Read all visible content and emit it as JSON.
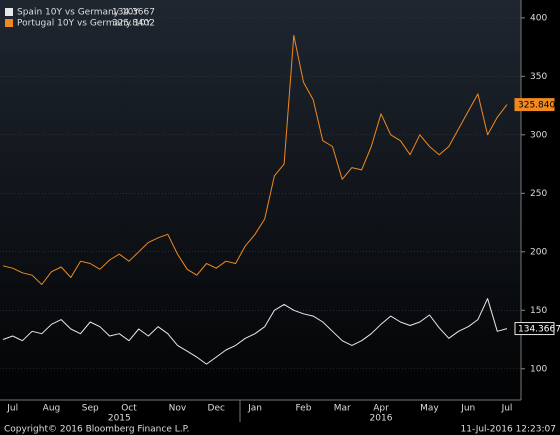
{
  "chart_data": {
    "type": "line",
    "categories": [
      null,
      "Jul",
      null,
      null,
      null,
      "Aug",
      null,
      null,
      null,
      "Sep",
      null,
      null,
      null,
      "Oct",
      null,
      null,
      null,
      null,
      "Nov",
      null,
      null,
      null,
      "Dec",
      null,
      null,
      null,
      "Jan",
      null,
      null,
      null,
      null,
      "Feb",
      null,
      null,
      null,
      "Mar",
      null,
      null,
      null,
      "Apr",
      null,
      null,
      null,
      null,
      "May",
      null,
      null,
      null,
      "Jun",
      null,
      null,
      null,
      "Jul"
    ],
    "year_labels": [
      {
        "label": "2015",
        "category": 12
      },
      {
        "label": "2016",
        "category": 39
      }
    ],
    "series": [
      {
        "name": "Spain 10Y vs Germany 10Y",
        "color": "#e8e8e8",
        "values": [
          125,
          128,
          124,
          132,
          130,
          138,
          142,
          134,
          130,
          140,
          136,
          128,
          130,
          124,
          134,
          128,
          136,
          130,
          120,
          115,
          110,
          104,
          110,
          116,
          120,
          126,
          130,
          136,
          150,
          155,
          150,
          147,
          145,
          140,
          132,
          124,
          120,
          124,
          130,
          138,
          145,
          140,
          137,
          140,
          146,
          135,
          126,
          132,
          136,
          142,
          160,
          132,
          134.3667
        ]
      },
      {
        "name": "Portugal 10Y vs Germany 10Y",
        "color": "#f0891f",
        "values": [
          188,
          186,
          182,
          180,
          172,
          183,
          187,
          178,
          192,
          190,
          185,
          193,
          198,
          192,
          200,
          208,
          212,
          215,
          198,
          185,
          180,
          190,
          186,
          192,
          190,
          205,
          215,
          228,
          265,
          275,
          385,
          345,
          330,
          295,
          290,
          262,
          272,
          270,
          290,
          318,
          300,
          295,
          283,
          300,
          290,
          283,
          290,
          305,
          320,
          335,
          300,
          315,
          325.8402
        ]
      }
    ],
    "ylim": [
      75,
      411
    ],
    "yticks": [
      100,
      150,
      200,
      250,
      300,
      350,
      400
    ],
    "grid": true,
    "legend": "top-left",
    "footer_left": "Copyright© 2016 Bloomberg Finance L.P.",
    "footer_right": "11-Jul-2016 12:23:07"
  }
}
